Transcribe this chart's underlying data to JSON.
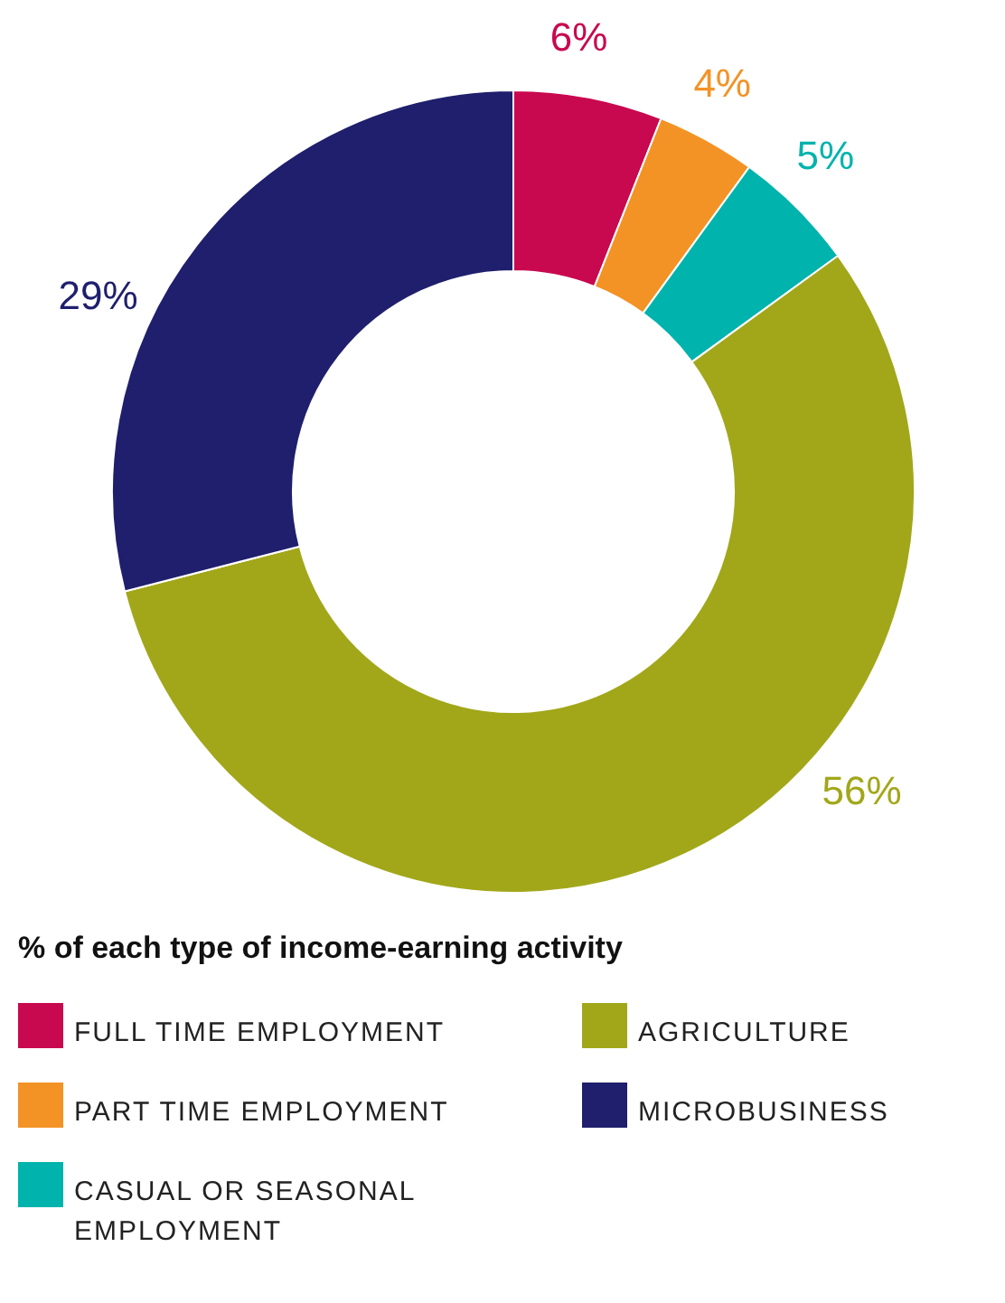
{
  "chart_data": {
    "type": "donut",
    "legend_title": "% of each type of income-earning activity",
    "categories": [
      "FULL TIME EMPLOYMENT",
      "PART TIME EMPLOYMENT",
      "CASUAL OR SEASONAL EMPLOYMENT",
      "AGRICULTURE",
      "MICROBUSINESS"
    ],
    "values": [
      6,
      4,
      5,
      56,
      29
    ],
    "value_labels": [
      "6%",
      "4%",
      "5%",
      "56%",
      "29%"
    ],
    "colors": [
      "#c8084f",
      "#f39325",
      "#00b3ad",
      "#a2a71a",
      "#1f1f6d"
    ],
    "legend": "bottom"
  }
}
